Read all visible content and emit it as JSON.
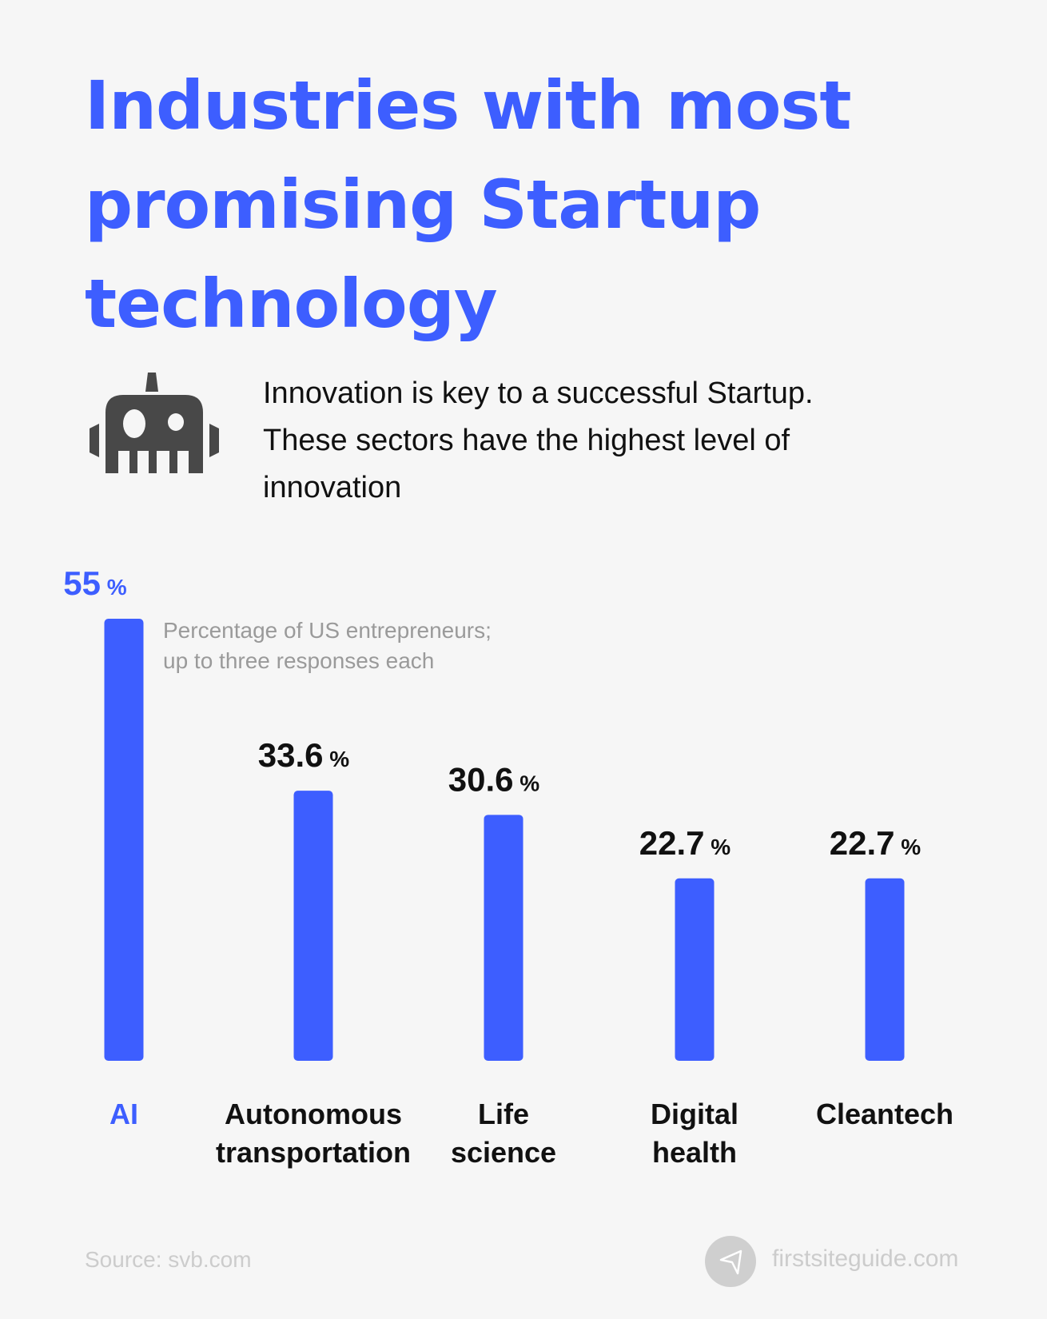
{
  "header": {
    "title_lines": [
      "Industries with most",
      "promising Startup",
      "technology"
    ]
  },
  "intro": {
    "lines": [
      "Innovation is key to a successful Startup.",
      "These sectors have the highest level of",
      "innovation"
    ],
    "icon": "robot-icon"
  },
  "colors": {
    "accent": "#3d5eff",
    "text": "#111111",
    "muted": "#9a9a9a",
    "footer": "#cccccc",
    "icon": "#484848"
  },
  "chart_data": {
    "type": "bar",
    "title": "Industries with most promising Startup technology",
    "note_lines": [
      "Percentage of US entrepreneurs;",
      "up to three responses each"
    ],
    "categories": [
      [
        "AI"
      ],
      [
        "Autonomous",
        "transportation"
      ],
      [
        "Life",
        "science"
      ],
      [
        "Digital",
        "health"
      ],
      [
        "Cleantech"
      ]
    ],
    "values": [
      55,
      33.6,
      30.6,
      22.7,
      22.7
    ],
    "value_labels": [
      "55",
      "33.6",
      "30.6",
      "22.7",
      "22.7"
    ],
    "unit": "%",
    "highlight_index": 0,
    "ylim": [
      0,
      55
    ],
    "grid": false
  },
  "footer": {
    "source": "Source: svb.com",
    "site": "firstsiteguide.com",
    "logo_icon": "paper-plane-icon"
  }
}
